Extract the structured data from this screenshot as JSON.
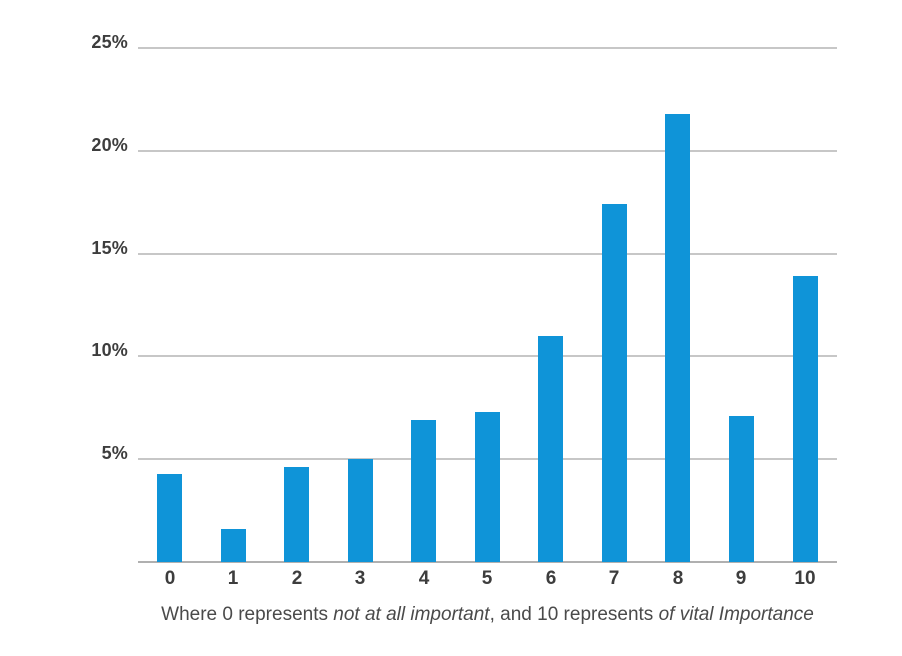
{
  "chart_data": {
    "type": "bar",
    "title": "",
    "xlabel": "",
    "ylabel": "",
    "categories": [
      "0",
      "1",
      "2",
      "3",
      "4",
      "5",
      "6",
      "7",
      "8",
      "9",
      "10"
    ],
    "values": [
      4.3,
      1.6,
      4.6,
      5.0,
      6.9,
      7.3,
      11.0,
      17.4,
      21.8,
      7.1,
      13.9
    ],
    "value_unit": "%",
    "ylim": [
      0,
      25
    ],
    "yticks": [
      5,
      10,
      15,
      20,
      25
    ],
    "ytick_labels": [
      "5%",
      "10%",
      "15%",
      "20%",
      "25%"
    ],
    "grid": true,
    "legend": "none",
    "bar_color": "#0f94d8",
    "gridline_color": "#c7c7c7",
    "axis_line_color": "#b0b0b0",
    "tick_label_color": "#3d3d3d"
  },
  "caption": {
    "full_text": "Where 0 represents not at all important, and 10 represents of vital Importance",
    "color": "#4a4a4a",
    "segments": [
      {
        "text": "Where 0 represents ",
        "italic": false
      },
      {
        "text": "not at all important",
        "italic": true
      },
      {
        "text": ", and 10 represents ",
        "italic": false
      },
      {
        "text": "of vital Importance",
        "italic": true
      }
    ]
  }
}
